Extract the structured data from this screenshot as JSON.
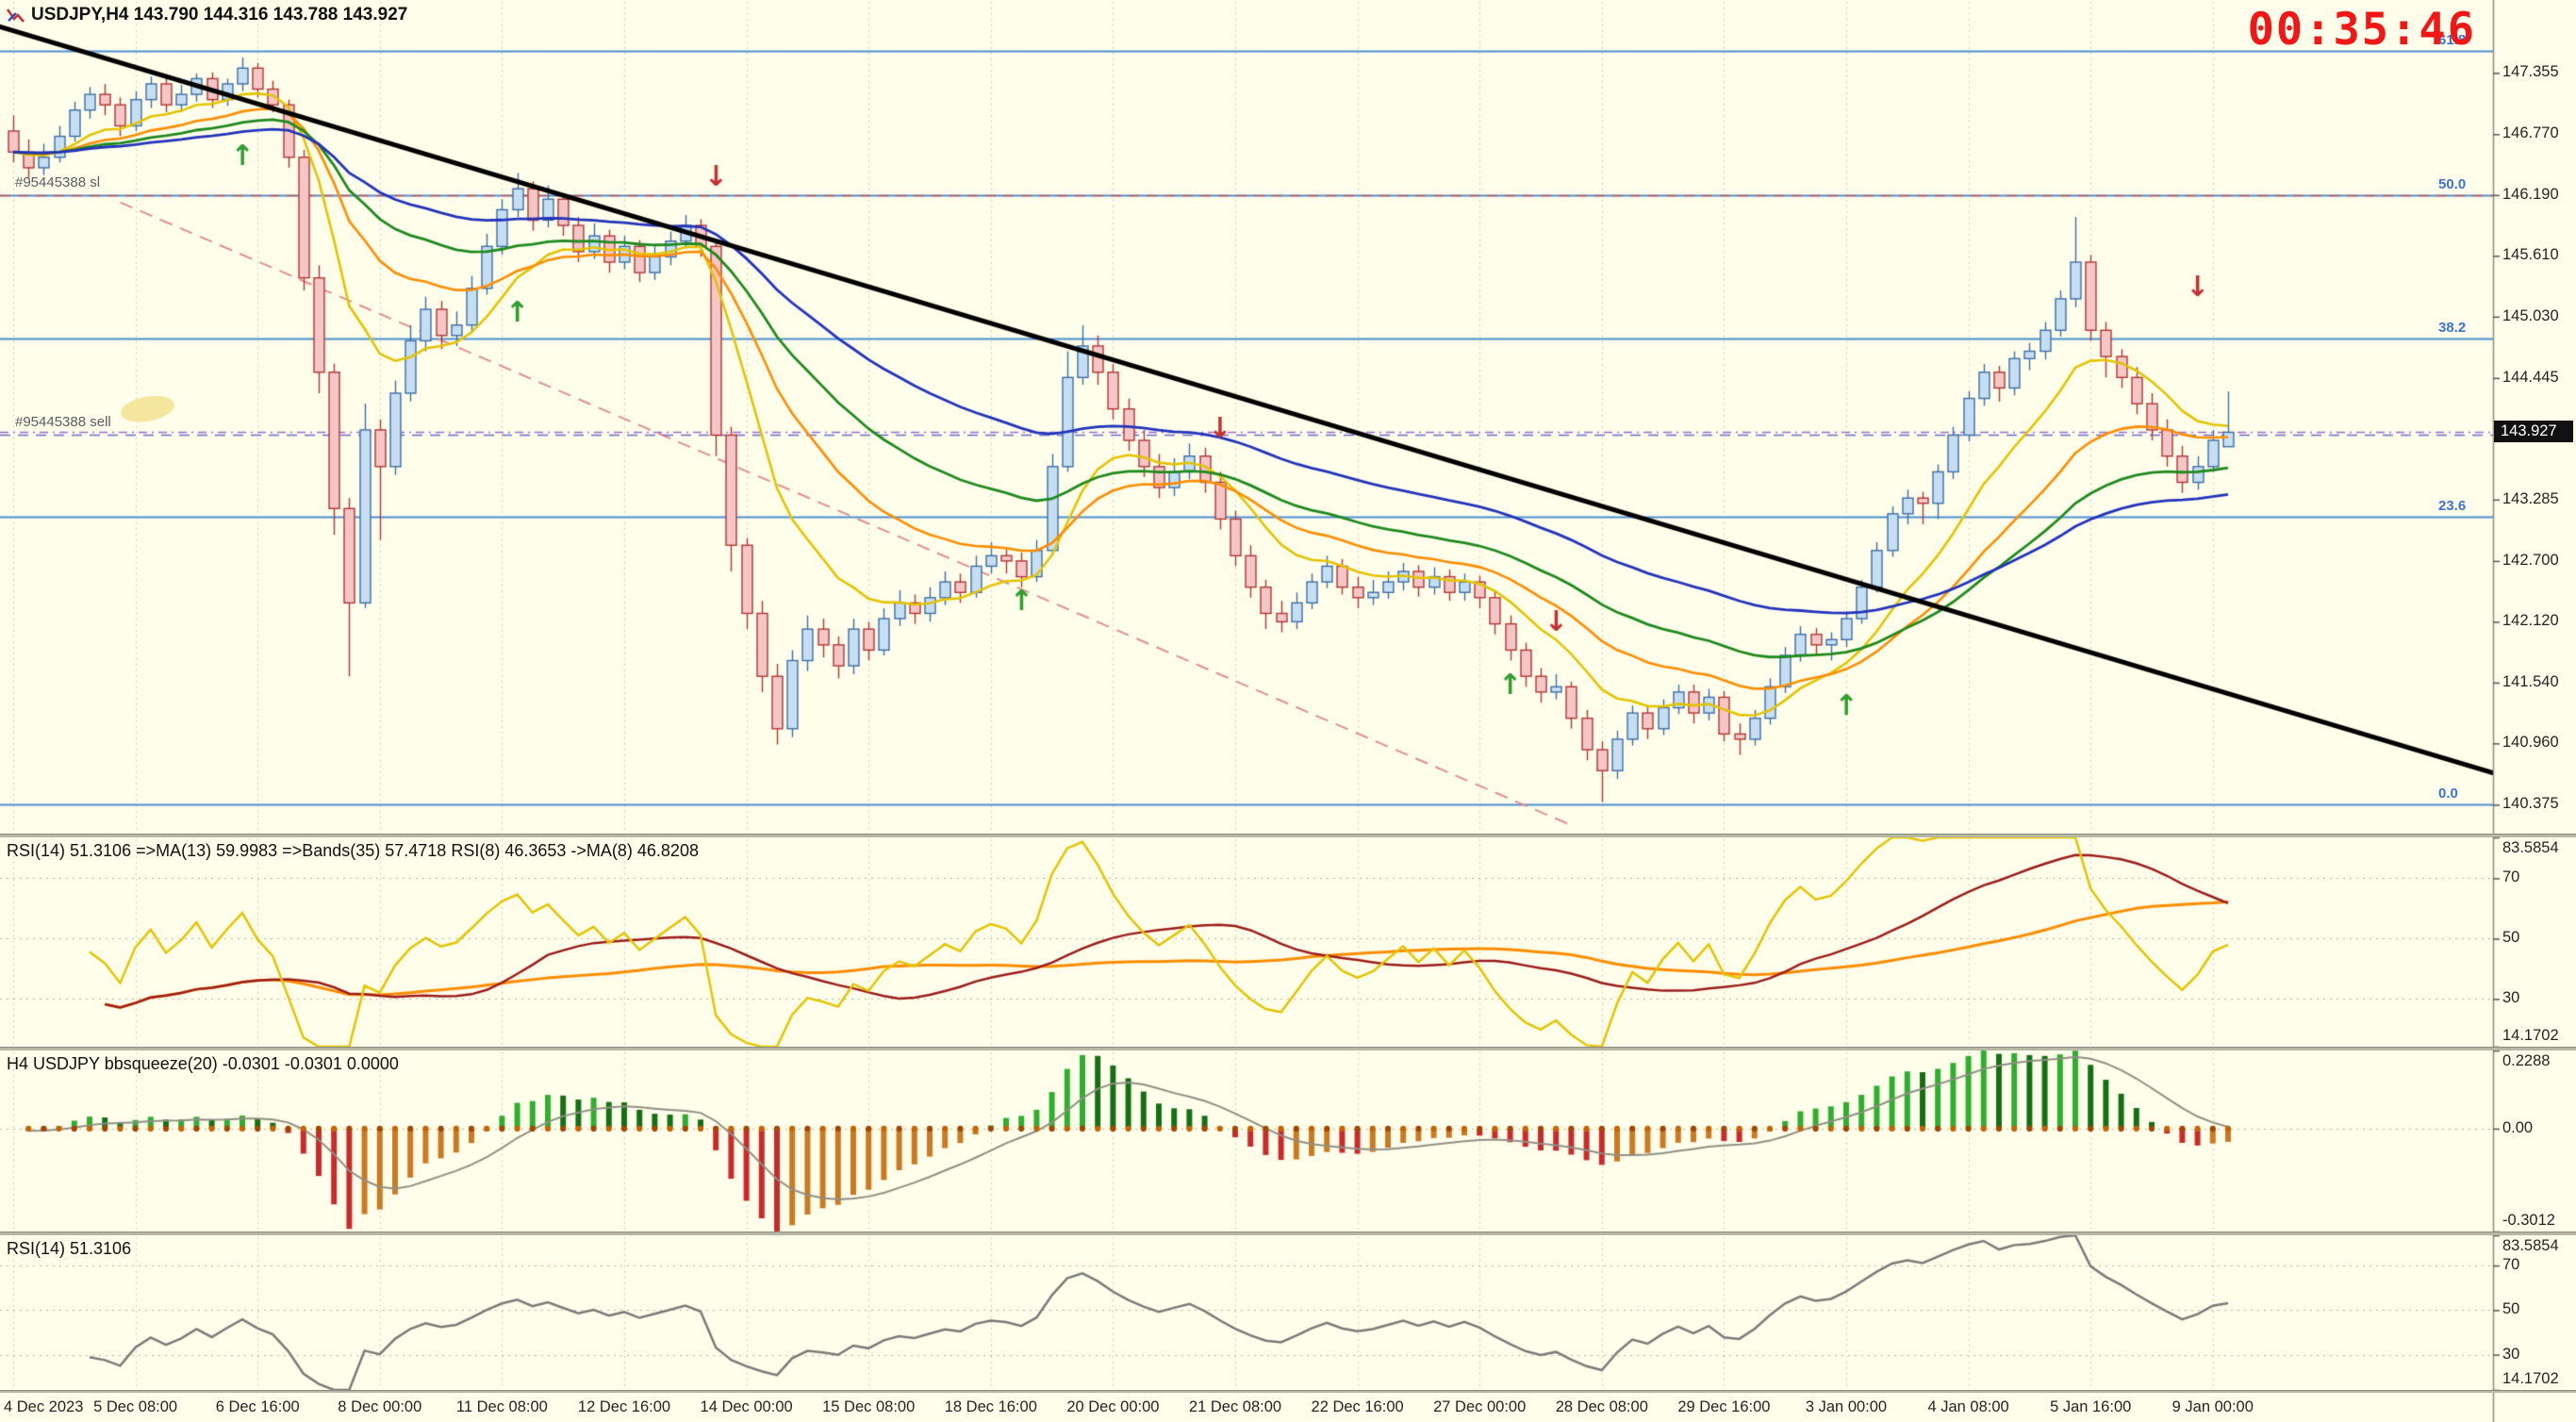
{
  "header": {
    "title": "USDJPY,H4 143.790 144.316 143.788 143.927"
  },
  "clock": "00:35:46",
  "colors": {
    "background": "#fffeea",
    "bull_fill": "#c6def2",
    "bull_border": "#3b6ea5",
    "bear_fill": "#f4c6c6",
    "bear_border": "#b23434",
    "fib": "#4a8fd4",
    "trendline": "#000000",
    "channel": "#e08f8f",
    "current_price_line": "#9a6ad0",
    "clock": "#f31616",
    "signal_up": "#2f9e2f",
    "signal_down": "#c23333",
    "grid": "#c2c2ac",
    "marker": "#f4e59a"
  },
  "chart_data": {
    "type": "candlestick",
    "symbol": "USDJPY",
    "timeframe": "H4",
    "price_range": [
      140.1,
      148.05
    ],
    "current_price": "143.927",
    "price_axis_labels": [
      "147.355",
      "146.770",
      "146.190",
      "145.610",
      "145.030",
      "144.445",
      "143.285",
      "142.700",
      "142.120",
      "141.540",
      "140.960",
      "140.375"
    ],
    "x_labels": [
      "4 Dec 2023",
      "5 Dec 08:00",
      "6 Dec 16:00",
      "8 Dec 00:00",
      "11 Dec 08:00",
      "12 Dec 16:00",
      "14 Dec 00:00",
      "15 Dec 08:00",
      "18 Dec 16:00",
      "20 Dec 00:00",
      "21 Dec 08:00",
      "22 Dec 16:00",
      "27 Dec 00:00",
      "28 Dec 08:00",
      "29 Dec 16:00",
      "3 Jan 00:00",
      "4 Jan 08:00",
      "5 Jan 16:00",
      "9 Jan 00:00"
    ],
    "x_label_step": 8,
    "candles": [
      [
        146.8,
        146.95,
        146.5,
        146.6
      ],
      [
        146.6,
        146.72,
        146.35,
        146.45
      ],
      [
        146.45,
        146.68,
        146.38,
        146.55
      ],
      [
        146.55,
        146.85,
        146.5,
        146.75
      ],
      [
        146.75,
        147.08,
        146.7,
        147.0
      ],
      [
        147.0,
        147.22,
        146.92,
        147.15
      ],
      [
        147.15,
        147.25,
        146.95,
        147.05
      ],
      [
        147.05,
        147.12,
        146.75,
        146.85
      ],
      [
        146.85,
        147.18,
        146.8,
        147.1
      ],
      [
        147.1,
        147.32,
        147.02,
        147.25
      ],
      [
        147.25,
        147.3,
        146.98,
        147.05
      ],
      [
        147.05,
        147.24,
        146.98,
        147.15
      ],
      [
        147.15,
        147.35,
        147.08,
        147.3
      ],
      [
        147.3,
        147.36,
        147.02,
        147.1
      ],
      [
        147.1,
        147.3,
        147.04,
        147.25
      ],
      [
        147.25,
        147.5,
        147.18,
        147.4
      ],
      [
        147.4,
        147.45,
        147.12,
        147.2
      ],
      [
        147.2,
        147.28,
        146.98,
        147.05
      ],
      [
        147.05,
        147.1,
        146.45,
        146.55
      ],
      [
        146.55,
        146.62,
        145.28,
        145.4
      ],
      [
        145.4,
        145.52,
        144.3,
        144.5
      ],
      [
        144.5,
        144.58,
        142.95,
        143.2
      ],
      [
        143.2,
        143.3,
        141.6,
        142.3
      ],
      [
        142.3,
        144.2,
        142.25,
        143.95
      ],
      [
        143.95,
        144.05,
        142.9,
        143.6
      ],
      [
        143.6,
        144.42,
        143.52,
        144.3
      ],
      [
        144.3,
        144.95,
        144.22,
        144.8
      ],
      [
        144.8,
        145.22,
        144.7,
        145.1
      ],
      [
        145.1,
        145.18,
        144.72,
        144.85
      ],
      [
        144.85,
        145.08,
        144.75,
        144.95
      ],
      [
        144.95,
        145.42,
        144.88,
        145.3
      ],
      [
        145.3,
        145.82,
        145.24,
        145.7
      ],
      [
        145.7,
        146.15,
        145.62,
        146.05
      ],
      [
        146.05,
        146.4,
        145.98,
        146.25
      ],
      [
        146.25,
        146.32,
        145.85,
        145.95
      ],
      [
        145.95,
        146.28,
        145.88,
        146.15
      ],
      [
        146.15,
        146.2,
        145.8,
        145.9
      ],
      [
        145.9,
        145.98,
        145.55,
        145.65
      ],
      [
        145.65,
        145.92,
        145.58,
        145.8
      ],
      [
        145.8,
        145.86,
        145.45,
        145.55
      ],
      [
        145.55,
        145.8,
        145.48,
        145.7
      ],
      [
        145.7,
        145.76,
        145.36,
        145.45
      ],
      [
        145.45,
        145.7,
        145.38,
        145.6
      ],
      [
        145.6,
        145.84,
        145.52,
        145.75
      ],
      [
        145.75,
        146.0,
        145.68,
        145.9
      ],
      [
        145.9,
        145.96,
        145.6,
        145.7
      ],
      [
        145.7,
        145.75,
        143.7,
        143.9
      ],
      [
        143.9,
        143.98,
        142.6,
        142.85
      ],
      [
        142.85,
        142.92,
        142.05,
        142.2
      ],
      [
        142.2,
        142.32,
        141.45,
        141.6
      ],
      [
        141.6,
        141.72,
        140.95,
        141.1
      ],
      [
        141.1,
        141.85,
        141.02,
        141.75
      ],
      [
        141.75,
        142.18,
        141.65,
        142.05
      ],
      [
        142.05,
        142.15,
        141.78,
        141.9
      ],
      [
        141.9,
        141.98,
        141.58,
        141.7
      ],
      [
        141.7,
        142.15,
        141.62,
        142.05
      ],
      [
        142.05,
        142.12,
        141.75,
        141.85
      ],
      [
        141.85,
        142.25,
        141.8,
        142.15
      ],
      [
        142.15,
        142.42,
        142.08,
        142.3
      ],
      [
        142.3,
        142.38,
        142.1,
        142.2
      ],
      [
        142.2,
        142.45,
        142.12,
        142.35
      ],
      [
        142.35,
        142.6,
        142.28,
        142.5
      ],
      [
        142.5,
        142.58,
        142.3,
        142.4
      ],
      [
        142.4,
        142.75,
        142.35,
        142.65
      ],
      [
        142.65,
        142.88,
        142.58,
        142.75
      ],
      [
        142.75,
        142.82,
        142.58,
        142.7
      ],
      [
        142.7,
        142.78,
        142.45,
        142.55
      ],
      [
        142.55,
        142.9,
        142.5,
        142.8
      ],
      [
        142.8,
        143.72,
        142.75,
        143.6
      ],
      [
        143.6,
        144.7,
        143.55,
        144.45
      ],
      [
        144.45,
        144.95,
        144.38,
        144.75
      ],
      [
        144.75,
        144.85,
        144.38,
        144.5
      ],
      [
        144.5,
        144.58,
        144.05,
        144.15
      ],
      [
        144.15,
        144.25,
        143.75,
        143.85
      ],
      [
        143.85,
        143.95,
        143.5,
        143.6
      ],
      [
        143.6,
        143.72,
        143.3,
        143.4
      ],
      [
        143.4,
        143.68,
        143.32,
        143.55
      ],
      [
        143.55,
        143.82,
        143.48,
        143.7
      ],
      [
        143.7,
        143.78,
        143.35,
        143.45
      ],
      [
        143.45,
        143.55,
        143.0,
        143.1
      ],
      [
        143.1,
        143.18,
        142.65,
        142.75
      ],
      [
        142.75,
        142.85,
        142.35,
        142.45
      ],
      [
        142.45,
        142.52,
        142.05,
        142.2
      ],
      [
        142.2,
        142.32,
        142.02,
        142.12
      ],
      [
        142.12,
        142.4,
        142.05,
        142.3
      ],
      [
        142.3,
        142.58,
        142.24,
        142.5
      ],
      [
        142.5,
        142.75,
        142.44,
        142.65
      ],
      [
        142.65,
        142.72,
        142.38,
        142.45
      ],
      [
        142.45,
        142.55,
        142.25,
        142.35
      ],
      [
        142.35,
        142.52,
        142.28,
        142.4
      ],
      [
        142.4,
        142.6,
        142.34,
        142.5
      ],
      [
        142.5,
        142.68,
        142.42,
        142.6
      ],
      [
        142.6,
        142.66,
        142.36,
        142.45
      ],
      [
        142.45,
        142.64,
        142.38,
        142.55
      ],
      [
        142.55,
        142.62,
        142.32,
        142.4
      ],
      [
        142.4,
        142.58,
        142.32,
        142.5
      ],
      [
        142.5,
        142.56,
        142.25,
        142.35
      ],
      [
        142.35,
        142.42,
        142.0,
        142.1
      ],
      [
        142.1,
        142.18,
        141.75,
        141.85
      ],
      [
        141.85,
        141.92,
        141.5,
        141.6
      ],
      [
        141.6,
        141.68,
        141.35,
        141.45
      ],
      [
        141.45,
        141.62,
        141.38,
        141.5
      ],
      [
        141.5,
        141.55,
        141.1,
        141.2
      ],
      [
        141.2,
        141.28,
        140.8,
        140.9
      ],
      [
        140.9,
        140.98,
        140.4,
        140.7
      ],
      [
        140.7,
        141.08,
        140.62,
        141.0
      ],
      [
        141.0,
        141.32,
        140.94,
        141.25
      ],
      [
        141.25,
        141.32,
        141.0,
        141.1
      ],
      [
        141.1,
        141.38,
        141.04,
        141.3
      ],
      [
        141.3,
        141.52,
        141.24,
        141.45
      ],
      [
        141.45,
        141.52,
        141.15,
        141.25
      ],
      [
        141.25,
        141.48,
        141.18,
        141.4
      ],
      [
        141.4,
        141.46,
        140.98,
        141.05
      ],
      [
        141.05,
        141.15,
        140.85,
        141.0
      ],
      [
        141.0,
        141.28,
        140.94,
        141.2
      ],
      [
        141.2,
        141.58,
        141.14,
        141.5
      ],
      [
        141.5,
        141.88,
        141.44,
        141.8
      ],
      [
        141.8,
        142.08,
        141.74,
        142.0
      ],
      [
        142.0,
        142.06,
        141.8,
        141.9
      ],
      [
        141.9,
        142.02,
        141.75,
        141.95
      ],
      [
        141.95,
        142.22,
        141.88,
        142.15
      ],
      [
        142.15,
        142.52,
        142.1,
        142.45
      ],
      [
        142.45,
        142.88,
        142.4,
        142.8
      ],
      [
        142.8,
        143.22,
        142.74,
        143.15
      ],
      [
        143.15,
        143.38,
        143.05,
        143.3
      ],
      [
        143.3,
        143.36,
        143.05,
        143.25
      ],
      [
        143.25,
        143.62,
        143.1,
        143.55
      ],
      [
        143.55,
        143.98,
        143.48,
        143.9
      ],
      [
        143.9,
        144.32,
        143.84,
        144.25
      ],
      [
        144.25,
        144.58,
        144.18,
        144.5
      ],
      [
        144.5,
        144.56,
        144.22,
        144.35
      ],
      [
        144.35,
        144.7,
        144.28,
        144.63
      ],
      [
        144.63,
        144.78,
        144.52,
        144.7
      ],
      [
        144.7,
        144.98,
        144.62,
        144.9
      ],
      [
        144.9,
        145.28,
        144.84,
        145.2
      ],
      [
        145.2,
        145.98,
        145.12,
        145.55
      ],
      [
        145.55,
        145.62,
        144.8,
        144.9
      ],
      [
        144.9,
        144.98,
        144.45,
        144.65
      ],
      [
        144.65,
        144.72,
        144.35,
        144.45
      ],
      [
        144.45,
        144.55,
        144.1,
        144.2
      ],
      [
        144.2,
        144.3,
        143.85,
        143.95
      ],
      [
        143.95,
        144.05,
        143.6,
        143.7
      ],
      [
        143.7,
        143.8,
        143.35,
        143.45
      ],
      [
        143.45,
        143.7,
        143.38,
        143.6
      ],
      [
        143.6,
        143.95,
        143.55,
        143.85
      ],
      [
        143.79,
        144.316,
        143.788,
        143.927
      ]
    ],
    "moving_averages": [
      {
        "name": "MA fast",
        "method": "ema",
        "period": 10,
        "color": "#e3c400",
        "width": 2.6
      },
      {
        "name": "MA medium",
        "method": "ema",
        "period": 21,
        "color": "#ff8c00",
        "width": 2.6
      },
      {
        "name": "MA slow",
        "method": "ema",
        "period": 34,
        "color": "#1e8a1e",
        "width": 2.8
      },
      {
        "name": "MA slowest",
        "method": "ema",
        "period": 55,
        "color": "#2233bb",
        "width": 2.8
      }
    ],
    "fib_levels": [
      {
        "label": "61.8",
        "price": 147.562
      },
      {
        "label": "50.0",
        "price": 146.19
      },
      {
        "label": "38.2",
        "price": 144.818
      },
      {
        "label": "23.6",
        "price": 143.12
      },
      {
        "label": "0.0",
        "price": 140.375
      }
    ],
    "orders": [
      {
        "label": "#95445388 sl",
        "price": 146.19,
        "color": "#cc5555"
      },
      {
        "label": "#95445388 sell",
        "price": 143.9,
        "color": "#6a6ad0"
      }
    ],
    "objects": {
      "trendline": {
        "i1": -1,
        "p1": 147.8,
        "i2": 163,
        "p2": 140.65,
        "width": 5
      },
      "channel": {
        "i1": 7,
        "p1": 146.12,
        "i2": 102,
        "p2": 140.18,
        "width": 2
      }
    },
    "signals": [
      {
        "i": 15,
        "price": 146.55,
        "dir": "up"
      },
      {
        "i": 33,
        "price": 145.05,
        "dir": "up"
      },
      {
        "i": 46,
        "price": 146.35,
        "dir": "down"
      },
      {
        "i": 66,
        "price": 142.3,
        "dir": "up"
      },
      {
        "i": 79,
        "price": 143.95,
        "dir": "down"
      },
      {
        "i": 98,
        "price": 141.5,
        "dir": "up"
      },
      {
        "i": 101,
        "price": 142.1,
        "dir": "down"
      },
      {
        "i": 120,
        "price": 141.3,
        "dir": "up"
      },
      {
        "i": 143,
        "price": 145.3,
        "dir": "down"
      }
    ],
    "marker": {
      "i": 8.8,
      "price": 144.15
    },
    "sub_panes": [
      {
        "id": "rsi_multi",
        "label": "RSI(14) 51.3106  =>MA(13) 59.9983  =>Bands(35) 57.4718  RSI(8) 46.3653  ->MA(8) 46.8208",
        "range": [
          14.1702,
          83.5854
        ],
        "axis_labels": [
          "83.5854",
          "70",
          "50",
          "30",
          "14.1702"
        ],
        "levels": [
          70,
          50,
          30
        ],
        "series": [
          {
            "name": "Bands(35) middle",
            "color": "#ff8c00",
            "width": 3,
            "calc": "sma_of_rsi",
            "rsi_period": 14,
            "ma_period": 35
          },
          {
            "name": "MA(13) of RSI(14)",
            "color": "#9b1c1c",
            "width": 2.5,
            "calc": "sma_of_rsi",
            "rsi_period": 14,
            "ma_period": 13
          },
          {
            "name": "RSI(8)",
            "color": "#e3c400",
            "width": 2.5,
            "calc": "rsi",
            "period": 8
          }
        ]
      },
      {
        "id": "bbsqueeze",
        "label": "H4 USDJPY bbsqueeze(20) -0.0301 -0.0301 0.0000",
        "range": [
          -0.3012,
          0.2288
        ],
        "axis_labels": [
          "0.2288",
          "0.00",
          "-0.3012"
        ],
        "histogram": {
          "period": 20,
          "up_rising": "#2fae2f",
          "up_falling": "#157015",
          "down_falling": "#cc2a2a",
          "down_rising": "#cc7a22",
          "dot_color_a": "#c86400",
          "dot_color_b": "#a34700",
          "signal_color": "#8f8f84"
        }
      },
      {
        "id": "rsi",
        "label": "RSI(14) 51.3106",
        "range": [
          14.1702,
          83.5854
        ],
        "axis_labels": [
          "83.5854",
          "70",
          "50",
          "30",
          "14.1702"
        ],
        "levels": [
          70,
          50,
          30
        ],
        "series": [
          {
            "name": "RSI(14)",
            "color": "#7a7a7a",
            "width": 2.5,
            "calc": "rsi",
            "period": 14
          }
        ]
      }
    ]
  }
}
